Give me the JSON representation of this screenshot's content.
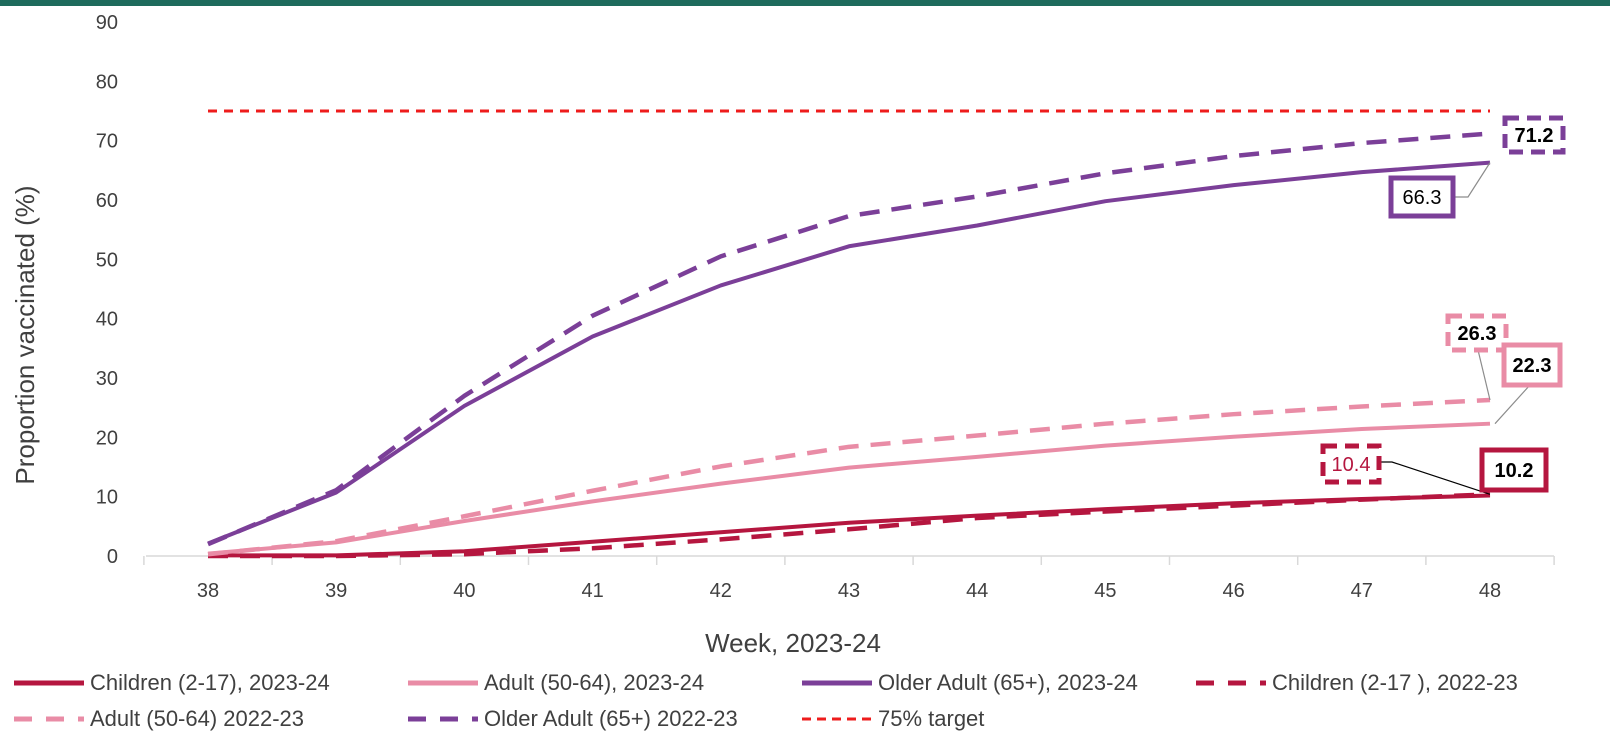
{
  "colors": {
    "topbar": "#1e6b5c",
    "children": "#b5163f",
    "adult": "#e98ca6",
    "older": "#7b3f98",
    "target": "#ee1c1c",
    "grid_axis": "#d9d9d9"
  },
  "chart_data": {
    "type": "line",
    "xlabel": "Week, 2023-24",
    "ylabel": "Proportion  vaccinated (%)",
    "ylim": [
      0,
      90
    ],
    "yticks": [
      "0",
      "10",
      "20",
      "30",
      "40",
      "50",
      "60",
      "70",
      "80",
      "90"
    ],
    "x": [
      38,
      39,
      40,
      41,
      42,
      43,
      44,
      45,
      46,
      47,
      48
    ],
    "xticks": [
      "38",
      "39",
      "40",
      "41",
      "42",
      "43",
      "44",
      "45",
      "46",
      "47",
      "48"
    ],
    "grid": false,
    "legend_position": "bottom",
    "series": [
      {
        "name": "Children (2-17), 2023-24",
        "color": "#b5163f",
        "dash": "solid",
        "values": [
          0.1,
          0.1,
          0.8,
          2.4,
          4.0,
          5.6,
          6.8,
          7.9,
          8.9,
          9.6,
          10.2
        ]
      },
      {
        "name": "Adult (50-64), 2023-24",
        "color": "#e98ca6",
        "dash": "solid",
        "values": [
          0.4,
          2.3,
          5.9,
          9.2,
          12.2,
          14.9,
          16.7,
          18.6,
          20.1,
          21.4,
          22.3
        ]
      },
      {
        "name": "Older Adult (65+), 2023-24",
        "color": "#7b3f98",
        "dash": "solid",
        "values": [
          2.1,
          10.7,
          25.3,
          37.0,
          45.6,
          52.2,
          55.7,
          59.8,
          62.5,
          64.7,
          66.3
        ]
      },
      {
        "name": "Children (2-17 ), 2022-23",
        "color": "#b5163f",
        "dash": "dash",
        "values": [
          0.0,
          0.0,
          0.3,
          1.3,
          2.8,
          4.5,
          6.4,
          7.5,
          8.5,
          9.5,
          10.4
        ]
      },
      {
        "name": "Adult (50-64) 2022-23",
        "color": "#e98ca6",
        "dash": "dash",
        "values": [
          0.3,
          2.5,
          6.7,
          11.0,
          15.1,
          18.4,
          20.3,
          22.3,
          23.9,
          25.2,
          26.3
        ]
      },
      {
        "name": "Older Adult (65+) 2022-23",
        "color": "#7b3f98",
        "dash": "dash",
        "values": [
          2.0,
          11.1,
          27.0,
          40.5,
          50.5,
          57.3,
          60.6,
          64.5,
          67.4,
          69.6,
          71.2
        ]
      },
      {
        "name": "75% target",
        "color": "#ee1c1c",
        "dash": "dash",
        "values": [
          75,
          75,
          75,
          75,
          75,
          75,
          75,
          75,
          75,
          75,
          75
        ]
      }
    ],
    "data_labels": [
      {
        "series": "Older Adult (65+) 2022-23",
        "text": "71.2",
        "bold": true,
        "box": "dashed",
        "color": "#7b3f98"
      },
      {
        "series": "Older Adult (65+), 2023-24",
        "text": "66.3",
        "bold": false,
        "box": "solid",
        "color": "#7b3f98"
      },
      {
        "series": "Adult (50-64) 2022-23",
        "text": "26.3",
        "bold": true,
        "box": "dashed",
        "color": "#e98ca6"
      },
      {
        "series": "Adult (50-64), 2023-24",
        "text": "22.3",
        "bold": true,
        "box": "solid",
        "color": "#e98ca6"
      },
      {
        "series": "Children (2-17 ), 2022-23",
        "text": "10.4",
        "bold": false,
        "box": "dashed",
        "color": "#b5163f"
      },
      {
        "series": "Children (2-17), 2023-24",
        "text": "10.2",
        "bold": true,
        "box": "solid",
        "color": "#b5163f"
      }
    ]
  },
  "legend": [
    {
      "label": "Children (2-17), 2023-24",
      "color": "#b5163f",
      "dash": "solid"
    },
    {
      "label": "Adult (50-64), 2023-24",
      "color": "#e98ca6",
      "dash": "solid"
    },
    {
      "label": "Older Adult (65+), 2023-24",
      "color": "#7b3f98",
      "dash": "solid"
    },
    {
      "label": "Children (2-17 ), 2022-23",
      "color": "#b5163f",
      "dash": "dash"
    },
    {
      "label": "Adult (50-64) 2022-23",
      "color": "#e98ca6",
      "dash": "dash"
    },
    {
      "label": "Older Adult (65+) 2022-23",
      "color": "#7b3f98",
      "dash": "dash"
    },
    {
      "label": "75% target",
      "color": "#ee1c1c",
      "dash": "dash"
    }
  ]
}
